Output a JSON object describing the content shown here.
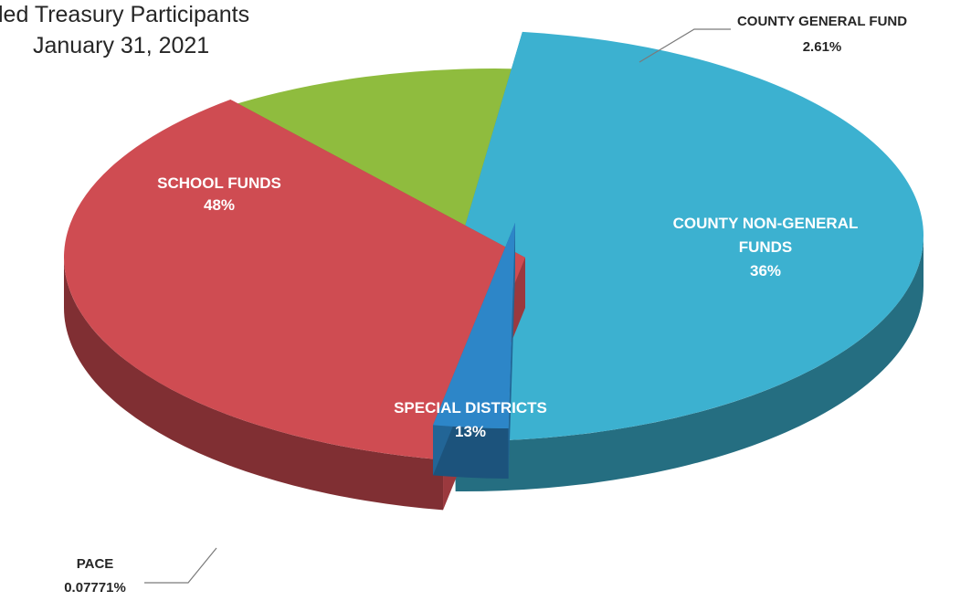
{
  "title_lines": [
    "led Treasury Participants",
    "January 31, 2021"
  ],
  "chart_data": {
    "type": "pie",
    "title": "led Treasury Participants January 31, 2021",
    "style": "3d-exploded",
    "slices": [
      {
        "label": "SCHOOL FUNDS",
        "display": "48%",
        "value": 48,
        "color": "#3cb1d0"
      },
      {
        "label": "COUNTY GENERAL FUND",
        "display": "2.61%",
        "value": 2.61,
        "color": "#2d86c8"
      },
      {
        "label": "COUNTY NON-GENERAL FUNDS",
        "display": "36%",
        "value": 36,
        "color": "#cf4c52"
      },
      {
        "label": "SPECIAL DISTRICTS",
        "display": "13%",
        "value": 13,
        "color": "#8fbc3e"
      },
      {
        "label": "PACE",
        "display": "0.07771%",
        "value": 0.07771,
        "color": "#6f6fb5"
      }
    ],
    "legend": "none",
    "label_placement": "inside, with leader lines for small slices"
  }
}
